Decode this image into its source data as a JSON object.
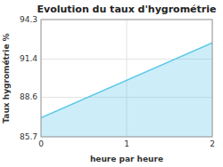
{
  "chart_data": {
    "type": "area",
    "title": "Evolution du taux d'hygrométrie",
    "x_label": "heure par heure",
    "y_label": "Taux hygrométrie %",
    "x": [
      0,
      2
    ],
    "values": [
      87.1,
      92.6
    ],
    "baseline": 85.7,
    "color": "#5bc8e8",
    "xlim": [
      0,
      2
    ],
    "ylim": [
      85.7,
      94.3
    ],
    "xticks": [
      0,
      1,
      2
    ],
    "yticks": [
      85.7,
      88.6,
      91.4,
      94.3
    ],
    "grid": true
  }
}
